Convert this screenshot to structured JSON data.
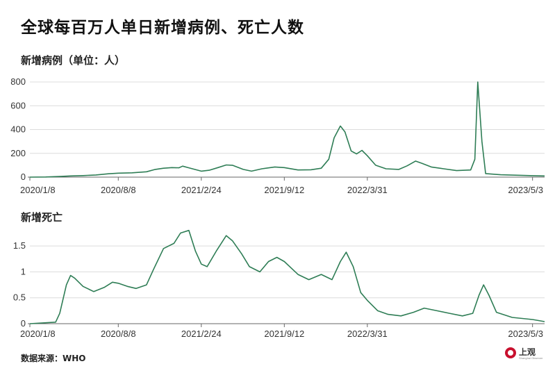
{
  "title": "全球每百万人单日新增病例、死亡人数",
  "source": "数据来源：WHO",
  "logo": {
    "text": "上观",
    "small_text": "Shanghai Observer"
  },
  "colors": {
    "line": "#2e7d55",
    "grid": "#dcdcdc",
    "axis": "#666666"
  },
  "chart_data": [
    {
      "type": "line",
      "title": "新增病例（单位：人）",
      "x_tick_labels": [
        "2020/1/8",
        "2020/8/8",
        "2021/2/24",
        "2021/9/12",
        "2022/3/31",
        "2023/5/3"
      ],
      "y_ticks": [
        "0",
        "200",
        "400",
        "600",
        "800"
      ],
      "ylim": [
        0,
        800
      ],
      "grid": true,
      "series": [
        {
          "values": [
            [
              "2020-01-08",
              0
            ],
            [
              "2020-02-15",
              1
            ],
            [
              "2020-03-20",
              5
            ],
            [
              "2020-04-15",
              10
            ],
            [
              "2020-05-15",
              13
            ],
            [
              "2020-06-15",
              18
            ],
            [
              "2020-07-15",
              28
            ],
            [
              "2020-08-08",
              33
            ],
            [
              "2020-09-10",
              36
            ],
            [
              "2020-10-15",
              45
            ],
            [
              "2020-11-05",
              65
            ],
            [
              "2020-11-25",
              75
            ],
            [
              "2020-12-15",
              80
            ],
            [
              "2021-01-01",
              78
            ],
            [
              "2021-01-10",
              92
            ],
            [
              "2021-01-25",
              78
            ],
            [
              "2021-02-24",
              50
            ],
            [
              "2021-03-15",
              58
            ],
            [
              "2021-04-05",
              80
            ],
            [
              "2021-04-25",
              102
            ],
            [
              "2021-05-10",
              100
            ],
            [
              "2021-06-05",
              65
            ],
            [
              "2021-06-25",
              50
            ],
            [
              "2021-07-20",
              70
            ],
            [
              "2021-08-20",
              85
            ],
            [
              "2021-09-12",
              80
            ],
            [
              "2021-10-15",
              60
            ],
            [
              "2021-11-15",
              62
            ],
            [
              "2021-12-10",
              75
            ],
            [
              "2021-12-28",
              150
            ],
            [
              "2022-01-10",
              330
            ],
            [
              "2022-01-25",
              430
            ],
            [
              "2022-02-05",
              380
            ],
            [
              "2022-02-20",
              220
            ],
            [
              "2022-03-05",
              195
            ],
            [
              "2022-03-18",
              225
            ],
            [
              "2022-03-31",
              180
            ],
            [
              "2022-04-20",
              100
            ],
            [
              "2022-05-15",
              70
            ],
            [
              "2022-06-15",
              65
            ],
            [
              "2022-07-05",
              95
            ],
            [
              "2022-07-25",
              135
            ],
            [
              "2022-08-10",
              115
            ],
            [
              "2022-09-01",
              85
            ],
            [
              "2022-10-01",
              70
            ],
            [
              "2022-11-01",
              55
            ],
            [
              "2022-12-05",
              60
            ],
            [
              "2022-12-15",
              150
            ],
            [
              "2022-12-22",
              800
            ],
            [
              "2023-01-01",
              300
            ],
            [
              "2023-01-10",
              30
            ],
            [
              "2023-02-15",
              20
            ],
            [
              "2023-05-03",
              12
            ],
            [
              "2023-06-01",
              10
            ]
          ]
        }
      ]
    },
    {
      "type": "line",
      "title": "新增死亡",
      "x_tick_labels": [
        "2020/1/8",
        "2020/8/8",
        "2021/2/24",
        "2021/9/12",
        "2022/3/31",
        "2023/5/3"
      ],
      "y_ticks": [
        "0",
        "0.5",
        "1",
        "1.5"
      ],
      "ylim": [
        0,
        1.85
      ],
      "grid": true,
      "series": [
        {
          "values": [
            [
              "2020-01-08",
              0
            ],
            [
              "2020-03-10",
              0.03
            ],
            [
              "2020-03-20",
              0.2
            ],
            [
              "2020-04-05",
              0.75
            ],
            [
              "2020-04-15",
              0.93
            ],
            [
              "2020-04-25",
              0.88
            ],
            [
              "2020-05-15",
              0.72
            ],
            [
              "2020-06-10",
              0.62
            ],
            [
              "2020-07-05",
              0.7
            ],
            [
              "2020-07-25",
              0.8
            ],
            [
              "2020-08-08",
              0.78
            ],
            [
              "2020-08-30",
              0.72
            ],
            [
              "2020-09-20",
              0.68
            ],
            [
              "2020-10-15",
              0.75
            ],
            [
              "2020-11-01",
              1.05
            ],
            [
              "2020-11-25",
              1.45
            ],
            [
              "2020-12-20",
              1.55
            ],
            [
              "2021-01-05",
              1.75
            ],
            [
              "2021-01-25",
              1.8
            ],
            [
              "2021-02-10",
              1.4
            ],
            [
              "2021-02-24",
              1.15
            ],
            [
              "2021-03-10",
              1.1
            ],
            [
              "2021-04-01",
              1.4
            ],
            [
              "2021-04-25",
              1.7
            ],
            [
              "2021-05-10",
              1.6
            ],
            [
              "2021-06-01",
              1.35
            ],
            [
              "2021-06-20",
              1.1
            ],
            [
              "2021-07-15",
              1.0
            ],
            [
              "2021-08-05",
              1.2
            ],
            [
              "2021-08-25",
              1.28
            ],
            [
              "2021-09-12",
              1.2
            ],
            [
              "2021-10-15",
              0.95
            ],
            [
              "2021-11-10",
              0.85
            ],
            [
              "2021-12-10",
              0.95
            ],
            [
              "2022-01-05",
              0.85
            ],
            [
              "2022-01-25",
              1.2
            ],
            [
              "2022-02-08",
              1.38
            ],
            [
              "2022-02-25",
              1.1
            ],
            [
              "2022-03-15",
              0.6
            ],
            [
              "2022-03-31",
              0.45
            ],
            [
              "2022-04-25",
              0.25
            ],
            [
              "2022-05-20",
              0.18
            ],
            [
              "2022-06-20",
              0.15
            ],
            [
              "2022-07-20",
              0.22
            ],
            [
              "2022-08-15",
              0.3
            ],
            [
              "2022-09-15",
              0.25
            ],
            [
              "2022-10-15",
              0.2
            ],
            [
              "2022-11-15",
              0.15
            ],
            [
              "2022-12-10",
              0.2
            ],
            [
              "2022-12-25",
              0.55
            ],
            [
              "2023-01-05",
              0.75
            ],
            [
              "2023-01-18",
              0.55
            ],
            [
              "2023-02-05",
              0.22
            ],
            [
              "2023-03-15",
              0.12
            ],
            [
              "2023-05-03",
              0.08
            ],
            [
              "2023-06-01",
              0.04
            ]
          ]
        }
      ]
    }
  ]
}
